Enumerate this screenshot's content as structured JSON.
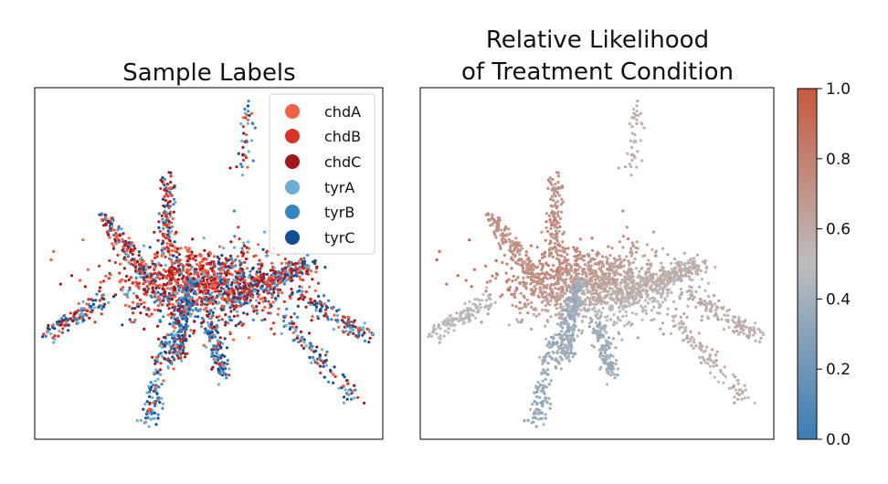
{
  "chart_data": [
    {
      "type": "scatter",
      "title": "Sample Labels",
      "xlabel": "",
      "ylabel": "",
      "axes_ticks": false,
      "legend": {
        "placement": "top-right",
        "entries": [
          {
            "name": "chdA",
            "color": "#f4603f"
          },
          {
            "name": "chdB",
            "color": "#d93028"
          },
          {
            "name": "chdC",
            "color": "#a51619"
          },
          {
            "name": "tyrA",
            "color": "#6aaed6"
          },
          {
            "name": "tyrB",
            "color": "#3585c1"
          },
          {
            "name": "tyrC",
            "color": "#0f4d96"
          }
        ]
      },
      "embedding": {
        "x_range": [
          0,
          100
        ],
        "y_range": [
          0,
          100
        ],
        "point_count": 2600,
        "arms": [
          {
            "from": [
              45,
              45
            ],
            "to": [
              40,
              23
            ],
            "share": 0.1
          },
          {
            "from": [
              35,
              42
            ],
            "to": [
              20,
              64
            ],
            "share": 0.07
          },
          {
            "from": [
              20,
              40
            ],
            "to": [
              4,
              30
            ],
            "share": 0.05
          },
          {
            "from": [
              38,
              52
            ],
            "to": [
              38,
              74
            ],
            "share": 0.04
          },
          {
            "from": [
              55,
              40
            ],
            "to": [
              80,
              50
            ],
            "share": 0.1
          },
          {
            "from": [
              75,
              42
            ],
            "to": [
              96,
              29
            ],
            "share": 0.05
          },
          {
            "from": [
              50,
              35
            ],
            "to": [
              54,
              18
            ],
            "share": 0.05
          },
          {
            "from": [
              70,
              36
            ],
            "to": [
              92,
              12
            ],
            "share": 0.04
          },
          {
            "from": [
              37,
              30
            ],
            "to": [
              33,
              5
            ],
            "share": 0.04
          },
          {
            "from": [
              60,
              75
            ],
            "to": [
              61,
              95
            ],
            "share": 0.015
          }
        ]
      }
    },
    {
      "type": "scatter",
      "title_line1": "Relative Likelihood",
      "title_line2": "of Treatment Condition",
      "xlabel": "",
      "ylabel": "",
      "axes_ticks": false,
      "colorbar": {
        "min": 0.0,
        "max": 1.0,
        "ticks": [
          "0.0",
          "0.2",
          "0.4",
          "0.6",
          "0.8",
          "1.0"
        ],
        "colors": [
          "#3b7db4",
          "#bdbdbd",
          "#c55a3d"
        ]
      },
      "value_gradient": "upper-left arms high (~0.75), lower center low (~0.35), outer arms ~0.55"
    }
  ]
}
